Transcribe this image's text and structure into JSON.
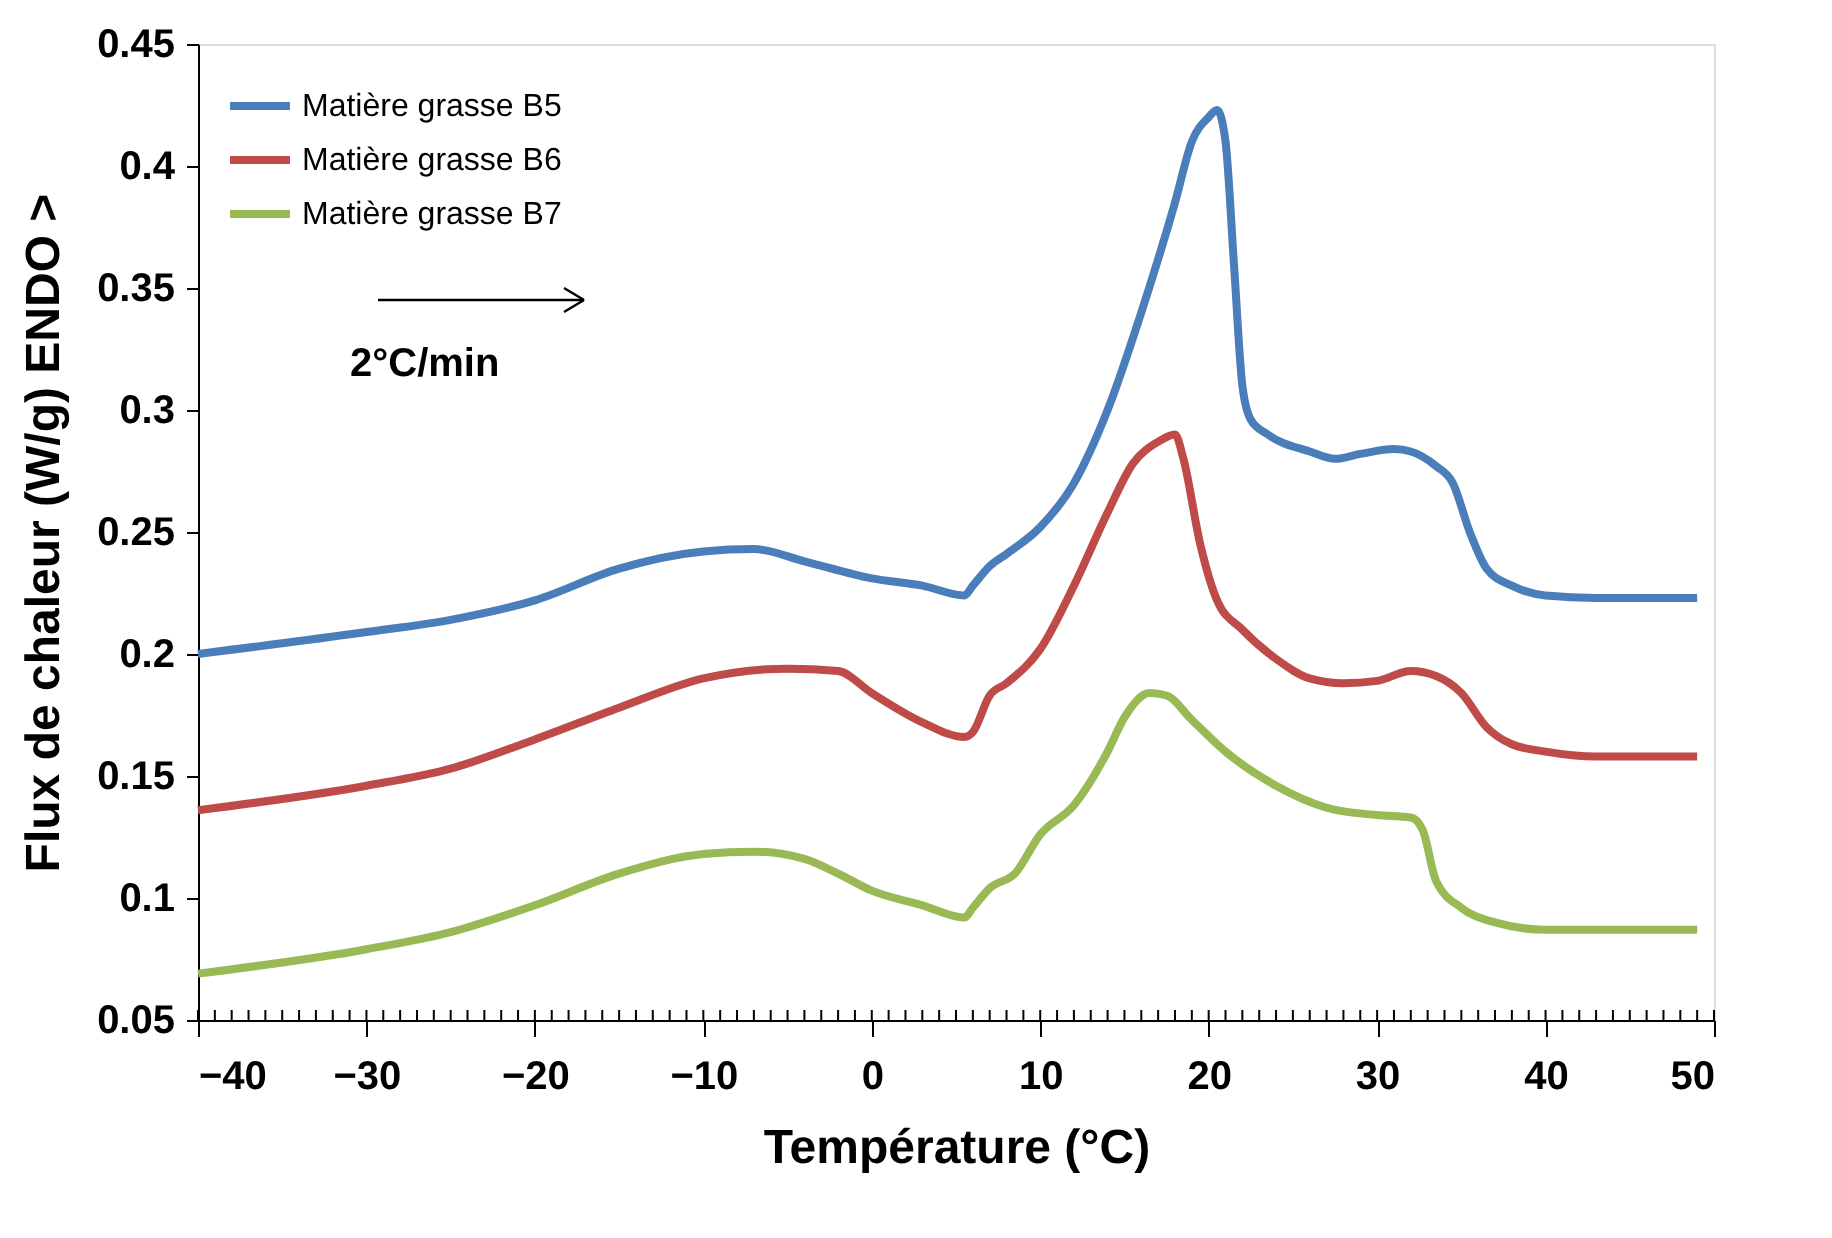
{
  "chart_data": {
    "type": "line",
    "xlabel": "Température (°C)",
    "ylabel": "Flux de chaleur (W/g)   ENDO >",
    "xlim": [
      -40,
      50
    ],
    "xticks": [
      -40,
      -30,
      -20,
      -10,
      0,
      10,
      20,
      30,
      40,
      50
    ],
    "ylim": [
      0.05,
      0.45
    ],
    "yticks": [
      0.05,
      0.1,
      0.15,
      0.2,
      0.25,
      0.3,
      0.35,
      0.4,
      0.45
    ],
    "grid": false,
    "legend": "top left",
    "marker": "none",
    "line_style": "solid",
    "annotations": [
      "2°C/min"
    ],
    "series": [
      {
        "name": "Matière grasse B5",
        "color": "#4a7ebb",
        "x": [
          -40,
          -30,
          -25,
          -20,
          -15,
          -10,
          -7,
          -4,
          0,
          3,
          5.5,
          6,
          7,
          8,
          10,
          12,
          14,
          16,
          18,
          19,
          20,
          20.5,
          21,
          21.5,
          22,
          22.5,
          23.5,
          26,
          27.5,
          29,
          31,
          32,
          33.5,
          34.5,
          35.5,
          36.5,
          38,
          40,
          43,
          49
        ],
        "values": [
          0.2,
          0.209,
          0.214,
          0.222,
          0.235,
          0.242,
          0.243,
          0.238,
          0.231,
          0.228,
          0.224,
          0.228,
          0.236,
          0.241,
          0.252,
          0.27,
          0.3,
          0.34,
          0.385,
          0.41,
          0.42,
          0.423,
          0.41,
          0.36,
          0.31,
          0.296,
          0.29,
          0.283,
          0.28,
          0.282,
          0.284,
          0.283,
          0.277,
          0.27,
          0.25,
          0.235,
          0.228,
          0.224,
          0.223,
          0.223
        ]
      },
      {
        "name": "Matière grasse B6",
        "color": "#be4b48",
        "x": [
          -40,
          -30,
          -25,
          -20,
          -15,
          -10,
          -5,
          -2,
          0,
          3,
          5.5,
          6,
          7,
          8,
          10,
          12,
          14,
          15.5,
          17,
          18,
          18.5,
          19.5,
          20.5,
          22,
          24,
          26,
          28,
          30,
          32,
          33.5,
          35,
          36.5,
          38,
          40,
          43,
          49
        ],
        "values": [
          0.136,
          0.146,
          0.153,
          0.165,
          0.178,
          0.19,
          0.194,
          0.193,
          0.184,
          0.172,
          0.166,
          0.168,
          0.183,
          0.188,
          0.202,
          0.228,
          0.258,
          0.278,
          0.287,
          0.29,
          0.28,
          0.245,
          0.222,
          0.21,
          0.198,
          0.19,
          0.188,
          0.189,
          0.193,
          0.191,
          0.184,
          0.17,
          0.163,
          0.16,
          0.158,
          0.158
        ]
      },
      {
        "name": "Matière grasse B7",
        "color": "#98b954",
        "x": [
          -40,
          -30,
          -25,
          -20,
          -15,
          -10,
          -7,
          -4,
          -2,
          0,
          3,
          5.5,
          6,
          7,
          8.5,
          10,
          12,
          14,
          15,
          16.5,
          17.5,
          19,
          21,
          24,
          27,
          30,
          32,
          32.7,
          33.5,
          35,
          37,
          40,
          44,
          49
        ],
        "values": [
          0.069,
          0.079,
          0.086,
          0.097,
          0.11,
          0.118,
          0.119,
          0.116,
          0.11,
          0.103,
          0.097,
          0.092,
          0.096,
          0.104,
          0.11,
          0.126,
          0.138,
          0.16,
          0.174,
          0.184,
          0.183,
          0.173,
          0.16,
          0.146,
          0.137,
          0.134,
          0.133,
          0.128,
          0.107,
          0.096,
          0.09,
          0.087,
          0.087,
          0.087
        ]
      }
    ]
  }
}
